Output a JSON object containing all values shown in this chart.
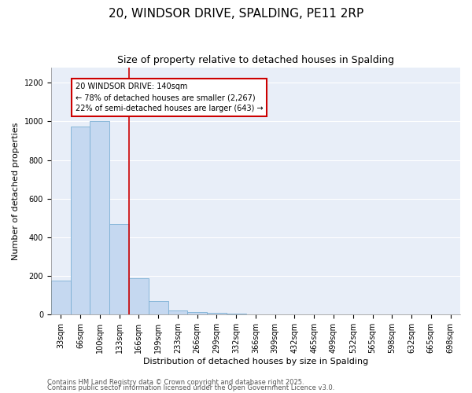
{
  "title1": "20, WINDSOR DRIVE, SPALDING, PE11 2RP",
  "title2": "Size of property relative to detached houses in Spalding",
  "xlabel": "Distribution of detached houses by size in Spalding",
  "ylabel": "Number of detached properties",
  "categories": [
    "33sqm",
    "66sqm",
    "100sqm",
    "133sqm",
    "166sqm",
    "199sqm",
    "233sqm",
    "266sqm",
    "299sqm",
    "332sqm",
    "366sqm",
    "399sqm",
    "432sqm",
    "465sqm",
    "499sqm",
    "532sqm",
    "565sqm",
    "598sqm",
    "632sqm",
    "665sqm",
    "698sqm"
  ],
  "values": [
    175,
    975,
    1000,
    470,
    190,
    70,
    20,
    15,
    10,
    5,
    0,
    0,
    0,
    0,
    0,
    0,
    0,
    0,
    0,
    0,
    0
  ],
  "bar_color": "#c5d8f0",
  "bar_edge_color": "#7bafd4",
  "red_line_index": 3,
  "red_line_color": "#cc0000",
  "annotation_text": "20 WINDSOR DRIVE: 140sqm\n← 78% of detached houses are smaller (2,267)\n22% of semi-detached houses are larger (643) →",
  "annotation_box_color": "#ffffff",
  "annotation_box_edge": "#cc0000",
  "ylim": [
    0,
    1280
  ],
  "yticks": [
    0,
    200,
    400,
    600,
    800,
    1000,
    1200
  ],
  "background_color": "#e8eef8",
  "footer1": "Contains HM Land Registry data © Crown copyright and database right 2025.",
  "footer2": "Contains public sector information licensed under the Open Government Licence v3.0.",
  "title_fontsize": 11,
  "subtitle_fontsize": 9,
  "axis_label_fontsize": 8,
  "tick_fontsize": 7,
  "annotation_fontsize": 7,
  "footer_fontsize": 6
}
